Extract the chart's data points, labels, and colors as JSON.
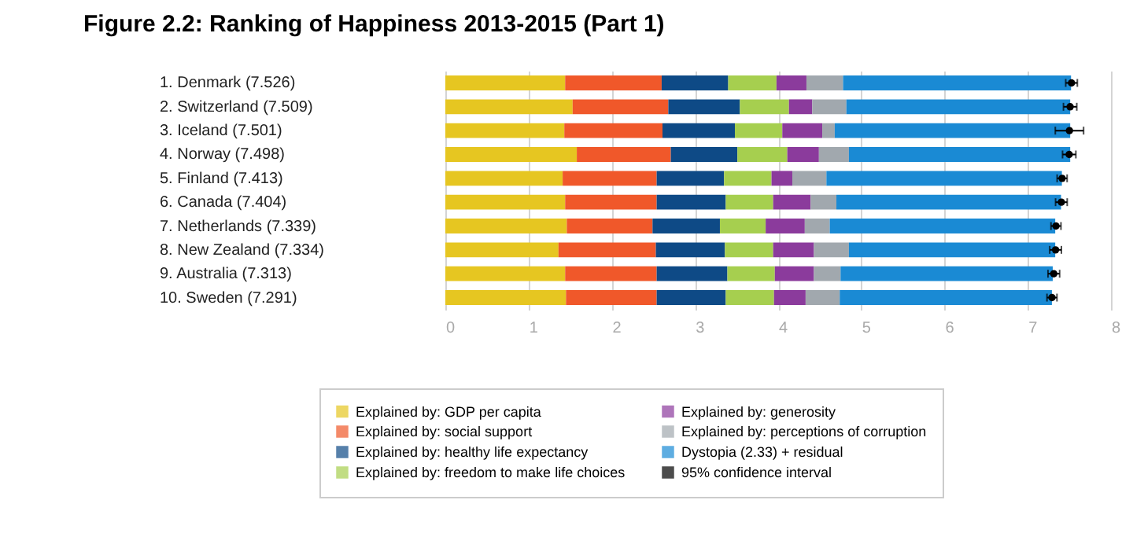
{
  "chart_data": {
    "type": "bar",
    "orientation": "horizontal",
    "stacked": true,
    "title": "Figure 2.2: Ranking of Happiness 2013-2015 (Part 1)",
    "categories": [
      "1.  Denmark  (7.526)",
      "2.  Switzerland  (7.509)",
      "3.  Iceland  (7.501)",
      "4.  Norway  (7.498)",
      "5.  Finland  (7.413)",
      "6.  Canada  (7.404)",
      "7.  Netherlands  (7.339)",
      "8.  New Zealand  (7.334)",
      "9.  Australia  (7.313)",
      "10.  Sweden  (7.291)"
    ],
    "series": [
      {
        "name": "Explained by: GDP per capita",
        "color": "#e6c621",
        "values": [
          1.44,
          1.53,
          1.43,
          1.58,
          1.41,
          1.44,
          1.46,
          1.36,
          1.44,
          1.45
        ]
      },
      {
        "name": "Explained by: social support",
        "color": "#f0582a",
        "values": [
          1.16,
          1.15,
          1.18,
          1.13,
          1.13,
          1.1,
          1.03,
          1.17,
          1.1,
          1.09
        ]
      },
      {
        "name": "Explained by: healthy life expectancy",
        "color": "#0e4a86",
        "values": [
          0.8,
          0.86,
          0.87,
          0.8,
          0.81,
          0.83,
          0.81,
          0.83,
          0.85,
          0.83
        ]
      },
      {
        "name": "Explained by: freedom to make life choices",
        "color": "#a6cf4f",
        "values": [
          0.58,
          0.59,
          0.57,
          0.6,
          0.57,
          0.57,
          0.55,
          0.58,
          0.57,
          0.58
        ]
      },
      {
        "name": "Explained by: generosity",
        "color": "#8b3b9c",
        "values": [
          0.36,
          0.28,
          0.48,
          0.38,
          0.25,
          0.45,
          0.47,
          0.49,
          0.47,
          0.38
        ]
      },
      {
        "name": "Explained by: perceptions of corruption",
        "color": "#a1a8ae",
        "values": [
          0.44,
          0.41,
          0.15,
          0.36,
          0.41,
          0.31,
          0.3,
          0.42,
          0.32,
          0.41
        ]
      },
      {
        "name": "Dystopia (2.33) + residual",
        "color": "#1a8ad4",
        "values": [
          2.74,
          2.69,
          2.83,
          2.66,
          2.83,
          2.7,
          2.71,
          2.48,
          2.55,
          2.55
        ]
      },
      {
        "name": "95% confidence interval",
        "color": "#000000",
        "type": "scatter",
        "values": [
          7.526,
          7.509,
          7.501,
          7.498,
          7.413,
          7.404,
          7.339,
          7.334,
          7.313,
          7.291
        ],
        "errors": [
          0.07,
          0.08,
          0.17,
          0.08,
          0.06,
          0.07,
          0.06,
          0.07,
          0.07,
          0.06
        ]
      }
    ],
    "xlim": [
      0,
      8
    ],
    "xticks": [
      0,
      1,
      2,
      3,
      4,
      5,
      6,
      7,
      8
    ],
    "grid": "x",
    "marker": "circle",
    "legend": "bottom"
  }
}
